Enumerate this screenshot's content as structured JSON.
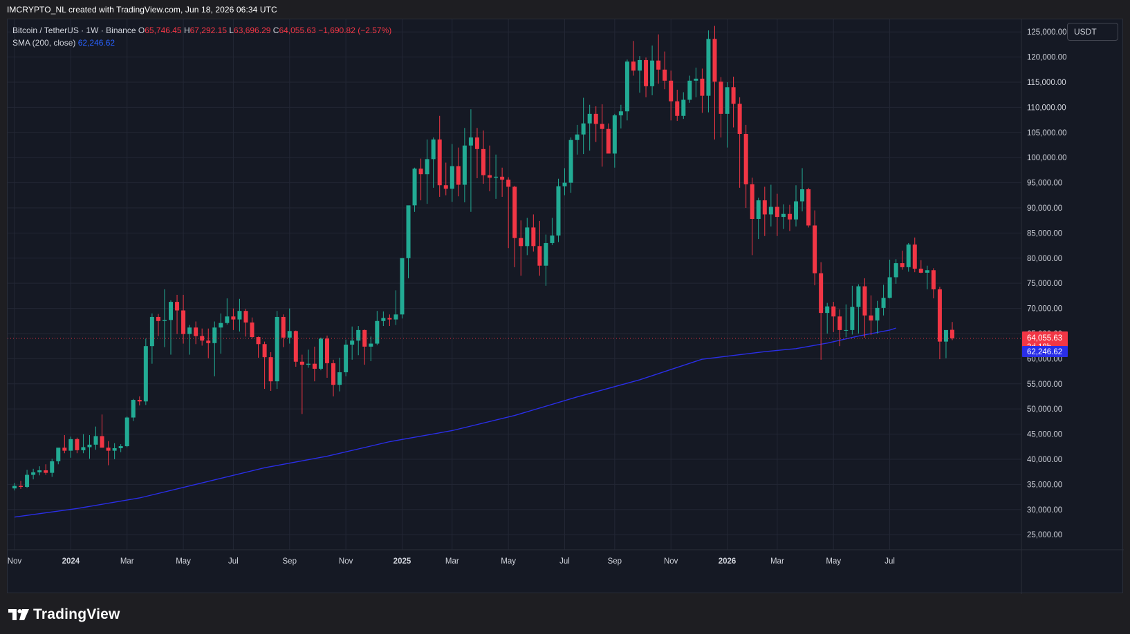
{
  "header": {
    "credit": "IMCRYPTO_NL created with TradingView.com, Jun 18, 2026 06:34 UTC"
  },
  "legend": {
    "symbol": "Bitcoin / TetherUS · 1W · Binance",
    "o_label": "O",
    "o_value": "65,746.45",
    "h_label": "H",
    "h_value": "67,292.15",
    "l_label": "L",
    "l_value": "63,696.29",
    "c_label": "C",
    "c_value": "64,055.63",
    "change": "−1,690.82 (−2.57%)",
    "sma_title": "SMA (200, close)",
    "sma_value": "62,246.62"
  },
  "currency_button": "USDT",
  "footer": {
    "logo_text": "TradingView",
    "logo_icon": "tradingview-logo-icon"
  },
  "colors": {
    "up": "#22ab94",
    "down": "#f23645",
    "sma": "#2a2ee8",
    "sma_label": "#2962ff",
    "background": "#151924",
    "grid": "#232735",
    "axis_text": "#d1d4dc"
  },
  "chart_data": {
    "type": "candlestick",
    "title": "Bitcoin / TetherUS · 1W · Binance",
    "timeframe": "1W",
    "y_axis": {
      "ticks": [
        25000,
        30000,
        35000,
        40000,
        45000,
        50000,
        55000,
        60000,
        65000,
        70000,
        75000,
        80000,
        85000,
        90000,
        95000,
        100000,
        105000,
        110000,
        115000,
        120000,
        125000
      ],
      "tick_labels": [
        "25,000.00",
        "30,000.00",
        "35,000.00",
        "40,000.00",
        "45,000.00",
        "50,000.00",
        "55,000.00",
        "60,000.00",
        "65,000.00",
        "70,000.00",
        "75,000.00",
        "80,000.00",
        "85,000.00",
        "90,000.00",
        "95,000.00",
        "100,000.00",
        "105,000.00",
        "110,000.00",
        "115,000.00",
        "120,000.00",
        "125,000.00"
      ],
      "ylim": [
        22000,
        127500
      ],
      "currency": "USDT"
    },
    "x_axis": {
      "labels": [
        "Nov",
        "2024",
        "Mar",
        "May",
        "Jul",
        "Sep",
        "Nov",
        "2025",
        "Mar",
        "May",
        "Jul",
        "Sep",
        "Nov",
        "2026",
        "Mar",
        "May",
        "Jul"
      ],
      "bold_labels": [
        "2024",
        "2025",
        "2026"
      ],
      "label_candle_index": [
        0,
        9,
        18,
        27,
        35,
        44,
        53,
        62,
        70,
        79,
        88,
        96,
        105,
        114,
        122,
        131,
        140
      ]
    },
    "grid": true,
    "last_price": {
      "value": 64055.63,
      "label": "64,055.63",
      "countdown": "3d 18h"
    },
    "sma_label": {
      "value": 62246.62,
      "label": "62,246.62"
    },
    "candles": [
      [
        34200,
        35300,
        33800,
        34700
      ],
      [
        34700,
        35700,
        34100,
        34500
      ],
      [
        34500,
        37900,
        34300,
        36900
      ],
      [
        36900,
        38100,
        36000,
        37400
      ],
      [
        37400,
        38600,
        36800,
        37800
      ],
      [
        37800,
        39000,
        36900,
        37300
      ],
      [
        37300,
        40100,
        36500,
        39600
      ],
      [
        39600,
        41900,
        39000,
        42300
      ],
      [
        42300,
        44800,
        41200,
        41700
      ],
      [
        41700,
        44500,
        40300,
        44000
      ],
      [
        44000,
        44300,
        41200,
        41800
      ],
      [
        41800,
        45000,
        41200,
        42400
      ],
      [
        42400,
        44800,
        40100,
        42900
      ],
      [
        42900,
        46500,
        41900,
        44600
      ],
      [
        44600,
        48900,
        42500,
        42300
      ],
      [
        42300,
        43600,
        38800,
        41700
      ],
      [
        41700,
        43200,
        40000,
        42200
      ],
      [
        42200,
        43000,
        41400,
        42600
      ],
      [
        42600,
        48500,
        42400,
        48300
      ],
      [
        48300,
        52000,
        47600,
        51800
      ],
      [
        51800,
        52500,
        50700,
        51500
      ],
      [
        51500,
        64000,
        50800,
        62500
      ],
      [
        62500,
        69000,
        59000,
        68300
      ],
      [
        68300,
        68900,
        64500,
        67500
      ],
      [
        67500,
        73800,
        62300,
        67700
      ],
      [
        67700,
        71600,
        60800,
        71300
      ],
      [
        71300,
        72700,
        64900,
        69600
      ],
      [
        69600,
        72700,
        63000,
        64900
      ],
      [
        64900,
        66700,
        60800,
        66200
      ],
      [
        66200,
        67400,
        62900,
        64500
      ],
      [
        64500,
        66000,
        62600,
        63600
      ],
      [
        63600,
        66000,
        60100,
        63100
      ],
      [
        63100,
        67400,
        56500,
        66200
      ],
      [
        66200,
        69000,
        61000,
        67100
      ],
      [
        67100,
        72000,
        66800,
        68400
      ],
      [
        68400,
        70000,
        65700,
        67800
      ],
      [
        67800,
        71900,
        65400,
        69500
      ],
      [
        69500,
        69900,
        64400,
        67200
      ],
      [
        67200,
        68200,
        64000,
        64300
      ],
      [
        64300,
        64400,
        60200,
        62900
      ],
      [
        62900,
        63400,
        54000,
        60300
      ],
      [
        60300,
        61300,
        53600,
        55500
      ],
      [
        55500,
        69500,
        54000,
        68300
      ],
      [
        68300,
        68800,
        62300,
        64200
      ],
      [
        64200,
        70000,
        63000,
        65500
      ],
      [
        65500,
        65600,
        58400,
        59400
      ],
      [
        59400,
        60800,
        49000,
        58800
      ],
      [
        58800,
        61800,
        58200,
        59000
      ],
      [
        59000,
        62400,
        55500,
        58000
      ],
      [
        58000,
        64200,
        57700,
        64000
      ],
      [
        64000,
        64600,
        56200,
        59100
      ],
      [
        59100,
        59800,
        52500,
        54800
      ],
      [
        54800,
        60200,
        53500,
        57300
      ],
      [
        57300,
        63800,
        56500,
        62800
      ],
      [
        62800,
        66400,
        59800,
        63600
      ],
      [
        63600,
        66500,
        60700,
        65700
      ],
      [
        65700,
        65800,
        58800,
        62400
      ],
      [
        62400,
        64400,
        59500,
        63000
      ],
      [
        63000,
        69500,
        62700,
        67500
      ],
      [
        67500,
        69400,
        66500,
        68100
      ],
      [
        68100,
        68800,
        66500,
        67800
      ],
      [
        67800,
        73600,
        66700,
        68800
      ],
      [
        68800,
        80000,
        68000,
        80000
      ],
      [
        80000,
        90000,
        76000,
        90500
      ],
      [
        90500,
        98000,
        89200,
        97800
      ],
      [
        97800,
        99800,
        91500,
        96700
      ],
      [
        96700,
        103600,
        90800,
        99700
      ],
      [
        99700,
        104000,
        94000,
        103600
      ],
      [
        103600,
        108300,
        92200,
        94500
      ],
      [
        94500,
        99000,
        92500,
        93800
      ],
      [
        93800,
        102700,
        91200,
        98300
      ],
      [
        98300,
        102000,
        92300,
        94600
      ],
      [
        94600,
        105900,
        91100,
        102400
      ],
      [
        102400,
        109600,
        89200,
        104000
      ],
      [
        104000,
        105900,
        95900,
        101700
      ],
      [
        101700,
        105400,
        94800,
        96500
      ],
      [
        96500,
        102400,
        93300,
        96000
      ],
      [
        96000,
        100600,
        91800,
        96200
      ],
      [
        96200,
        98000,
        92200,
        95600
      ],
      [
        95600,
        96100,
        82000,
        94200
      ],
      [
        94200,
        94400,
        78200,
        84000
      ],
      [
        84000,
        87500,
        76500,
        82400
      ],
      [
        82400,
        88000,
        80600,
        86100
      ],
      [
        86100,
        88700,
        81300,
        82400
      ],
      [
        82400,
        87400,
        76500,
        78500
      ],
      [
        78500,
        84700,
        74500,
        83000
      ],
      [
        83000,
        88000,
        82600,
        84500
      ],
      [
        84500,
        95800,
        83200,
        94300
      ],
      [
        94300,
        97900,
        92500,
        95000
      ],
      [
        95000,
        104000,
        93000,
        103500
      ],
      [
        103500,
        106500,
        100600,
        104600
      ],
      [
        104600,
        111900,
        100700,
        106800
      ],
      [
        106800,
        110500,
        101400,
        108700
      ],
      [
        108700,
        110200,
        103100,
        106700
      ],
      [
        106700,
        110600,
        98200,
        105700
      ],
      [
        105700,
        106800,
        101000,
        100800
      ],
      [
        100800,
        108700,
        98000,
        108400
      ],
      [
        108400,
        110500,
        105800,
        109200
      ],
      [
        109200,
        119500,
        107400,
        119100
      ],
      [
        119100,
        123200,
        116300,
        117300
      ],
      [
        117300,
        120200,
        112900,
        119400
      ],
      [
        119400,
        119900,
        112000,
        114200
      ],
      [
        114200,
        122300,
        112400,
        119300
      ],
      [
        119300,
        124500,
        114700,
        117500
      ],
      [
        117500,
        121100,
        113600,
        115300
      ],
      [
        115300,
        117300,
        107400,
        111200
      ],
      [
        111200,
        113500,
        107300,
        108300
      ],
      [
        108300,
        113000,
        107700,
        111500
      ],
      [
        111500,
        116300,
        110900,
        115300
      ],
      [
        115300,
        117900,
        112000,
        115700
      ],
      [
        115700,
        117700,
        108900,
        112300
      ],
      [
        112300,
        125300,
        109000,
        123600
      ],
      [
        123600,
        126200,
        103600,
        115100
      ],
      [
        115100,
        116000,
        104000,
        108700
      ],
      [
        108700,
        115000,
        102000,
        114000
      ],
      [
        114000,
        116100,
        106000,
        110700
      ],
      [
        110700,
        112000,
        94000,
        104700
      ],
      [
        104700,
        106500,
        90000,
        94700
      ],
      [
        94700,
        96000,
        80600,
        87800
      ],
      [
        87800,
        92000,
        83800,
        91500
      ],
      [
        91500,
        94200,
        84400,
        88700
      ],
      [
        88700,
        94600,
        86300,
        90200
      ],
      [
        90200,
        92800,
        84400,
        88200
      ],
      [
        88200,
        90700,
        85800,
        88800
      ],
      [
        88800,
        90600,
        85400,
        87700
      ],
      [
        87700,
        94500,
        86300,
        91300
      ],
      [
        91300,
        97900,
        89300,
        93700
      ],
      [
        93700,
        94000,
        86100,
        86500
      ],
      [
        86500,
        89500,
        74600,
        77000
      ],
      [
        77000,
        79200,
        59800,
        69100
      ],
      [
        69100,
        71100,
        65000,
        70400
      ],
      [
        70400,
        71300,
        65300,
        68400
      ],
      [
        68400,
        69800,
        62500,
        65700
      ],
      [
        65700,
        70800,
        64300,
        65700
      ],
      [
        65700,
        74500,
        64800,
        70300
      ],
      [
        70300,
        74800,
        65000,
        74400
      ],
      [
        74400,
        76000,
        64200,
        68600
      ],
      [
        68600,
        72600,
        64700,
        67600
      ],
      [
        67600,
        71500,
        65000,
        70100
      ],
      [
        70100,
        74700,
        68600,
        72100
      ],
      [
        72100,
        79700,
        72000,
        76200
      ],
      [
        76200,
        79800,
        74900,
        79000
      ],
      [
        79000,
        81500,
        77700,
        78200
      ],
      [
        78200,
        83000,
        77300,
        82700
      ],
      [
        82700,
        84100,
        77200,
        77900
      ],
      [
        77900,
        79600,
        77000,
        77100
      ],
      [
        77100,
        78500,
        73800,
        77600
      ],
      [
        77600,
        78000,
        72000,
        73800
      ],
      [
        73800,
        74300,
        59900,
        63400
      ],
      [
        63400,
        65500,
        60100,
        65700
      ],
      [
        65746.45,
        67292.15,
        63696.29,
        64055.63
      ]
    ],
    "sma_series": {
      "name": "SMA (200, close)",
      "x_index": [
        0,
        10,
        20,
        30,
        40,
        50,
        60,
        70,
        80,
        90,
        100,
        110,
        120,
        125,
        130,
        135,
        140,
        141
      ],
      "values": [
        28500,
        30200,
        32300,
        35300,
        38300,
        40600,
        43500,
        45700,
        48700,
        52400,
        55800,
        59900,
        61400,
        62000,
        63100,
        64500,
        65700,
        66100
      ]
    }
  }
}
